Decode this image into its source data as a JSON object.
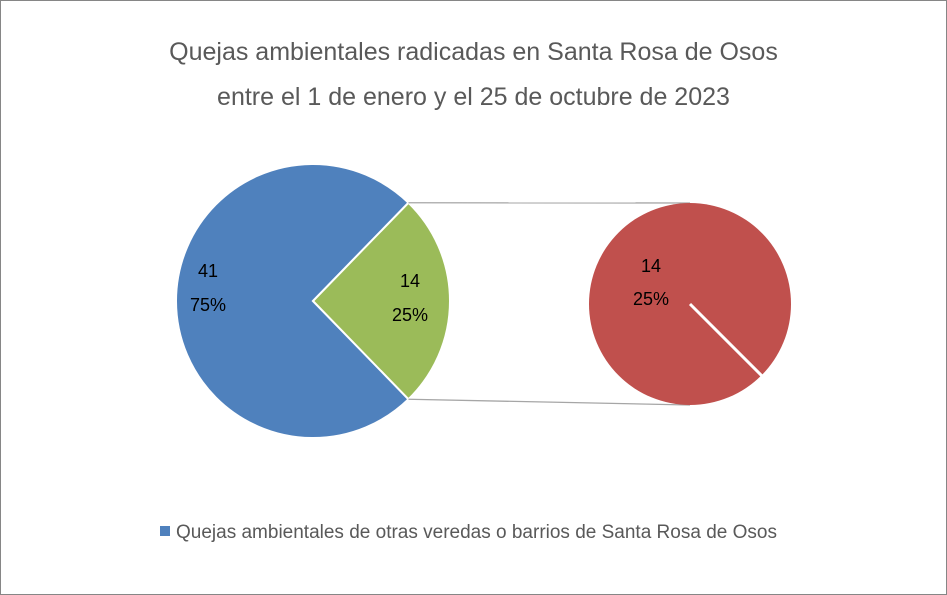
{
  "chart_data": {
    "type": "pie-of-pie",
    "title": "Quejas ambientales radicadas en Santa Rosa de Osos\nentre el 1 de enero y el 25 de octubre de 2023",
    "categories": [
      "Quejas ambientales de otras veredas o barrios de Santa Rosa de Osos",
      null
    ],
    "values": [
      41,
      14
    ],
    "percent_labels": [
      "75%",
      "25%"
    ],
    "colors": [
      "#4f81bd",
      "#9bbb59"
    ],
    "secondary": {
      "values": [
        14
      ],
      "percent_labels": [
        "25%"
      ],
      "colors": [
        "#c0504d"
      ]
    }
  }
}
